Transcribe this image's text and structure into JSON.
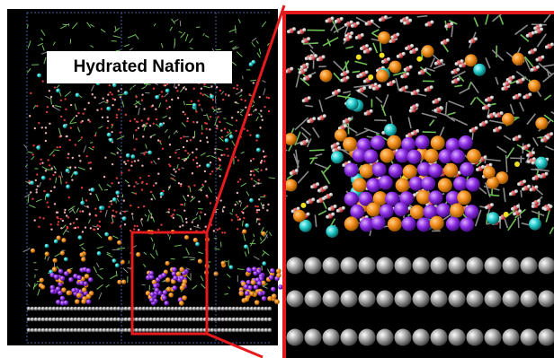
{
  "figure": {
    "label": "Hydrated Nafion",
    "colors": {
      "background": "#000000",
      "zoom_frame": "#e41a1c",
      "polymer_green": "#6fbf58",
      "polymer_gray": "#8a8a8a",
      "water_red": "#d83a3a",
      "water_white": "#f0f0f0",
      "cation_cyan": "#20c8c8",
      "ion_orange": "#f08a18",
      "ion_purple": "#8a2be2",
      "sulfur_yellow": "#f0e020",
      "substrate_gray": "#9a9a9a",
      "cell_border_blue": "#4a5aa0"
    },
    "panels": [
      "overview-simulation-cell",
      "zoomed-interface-view"
    ]
  }
}
